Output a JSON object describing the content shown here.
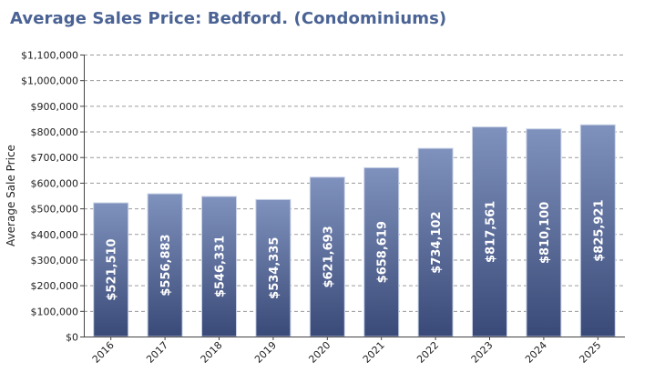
{
  "colors": {
    "title": "#4a6394",
    "bar_top": "#7f91bd",
    "bar_bottom": "#3a4a78",
    "grid": "#9a9a9a"
  },
  "chart_data": {
    "type": "bar",
    "title": "Average Sales Price: Bedford. (Condominiums)",
    "ylabel": "Average Sale Price",
    "xlabel": "",
    "categories": [
      "2016",
      "2017",
      "2018",
      "2019",
      "2020",
      "2021",
      "2022",
      "2023",
      "2024",
      "2025"
    ],
    "values": [
      521510,
      556883,
      546331,
      534335,
      621693,
      658619,
      734102,
      817561,
      810100,
      825921
    ],
    "value_labels": [
      "$521,510",
      "$556,883",
      "$546,331",
      "$534,335",
      "$621,693",
      "$658,619",
      "$734,102",
      "$817,561",
      "$810,100",
      "$825,921"
    ],
    "ylim": [
      0,
      1100000
    ],
    "yticks": [
      0,
      100000,
      200000,
      300000,
      400000,
      500000,
      600000,
      700000,
      800000,
      900000,
      1000000,
      1100000
    ],
    "ytick_labels": [
      "$0",
      "$100,000",
      "$200,000",
      "$300,000",
      "$400,000",
      "$500,000",
      "$600,000",
      "$700,000",
      "$800,000",
      "$900,000",
      "$1,000,000",
      "$1,100,000"
    ],
    "grid": true,
    "legend": "none"
  }
}
